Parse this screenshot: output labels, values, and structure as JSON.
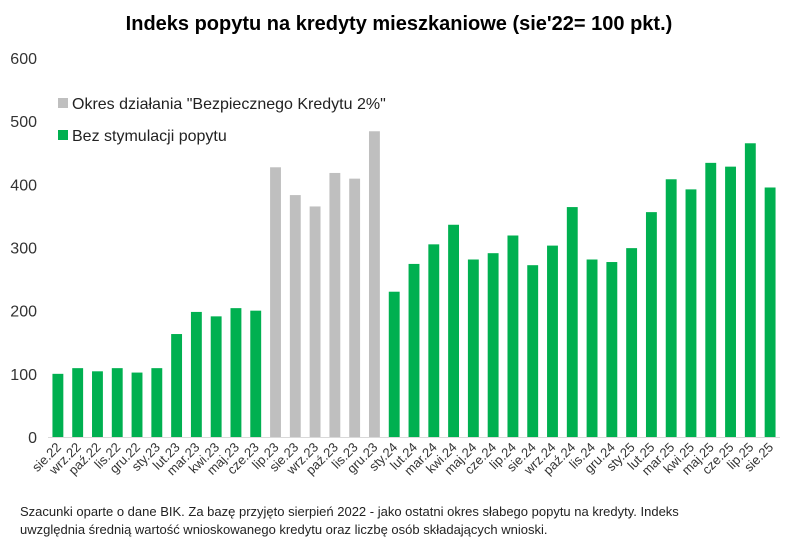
{
  "chart_data": {
    "type": "bar",
    "title": "Indeks popytu na kredyty mieszkaniowe (sie'22= 100 pkt.)",
    "xlabel": "",
    "ylabel": "",
    "ylim": [
      0,
      600
    ],
    "yticks": [
      "0",
      "100",
      "200",
      "300",
      "400",
      "500",
      "600"
    ],
    "grid": false,
    "legend_position": "top-left",
    "categories": [
      "sie.22",
      "wrz.22",
      "paź.22",
      "lis.22",
      "gru.22",
      "sty.23",
      "lut.23",
      "mar.23",
      "kwi.23",
      "maj.23",
      "cze.23",
      "lip.23",
      "sie.23",
      "wrz.23",
      "paź.23",
      "lis.23",
      "gru.23",
      "sty.24",
      "lut.24",
      "mar.24",
      "kwi.24",
      "maj.24",
      "cze.24",
      "lip.24",
      "sie.24",
      "wrz.24",
      "paź.24",
      "lis.24",
      "gru.24",
      "sty.25",
      "lut.25",
      "mar.25",
      "kwi.25",
      "maj.25",
      "cze.25",
      "lip.25",
      "sie.25"
    ],
    "values": [
      100,
      109,
      104,
      109,
      102,
      109,
      163,
      198,
      191,
      204,
      200,
      427,
      383,
      365,
      418,
      409,
      484,
      230,
      274,
      305,
      336,
      281,
      291,
      319,
      272,
      303,
      364,
      281,
      277,
      299,
      356,
      408,
      392,
      434,
      428,
      465,
      395
    ],
    "series_index": [
      1,
      1,
      1,
      1,
      1,
      1,
      1,
      1,
      1,
      1,
      1,
      0,
      0,
      0,
      0,
      0,
      0,
      1,
      1,
      1,
      1,
      1,
      1,
      1,
      1,
      1,
      1,
      1,
      1,
      1,
      1,
      1,
      1,
      1,
      1,
      1,
      1
    ],
    "series": [
      {
        "name": "Okres działania \"Bezpiecznego Kredytu 2%\"",
        "color": "#bfbfbf"
      },
      {
        "name": "Bez stymulacji popytu",
        "color": "#00b050"
      }
    ]
  },
  "footnote": {
    "line1": "Szacunki oparte o dane BIK. Za bazę przyjęto sierpień 2022 - jako ostatni okres słabego popytu na kredyty. Indeks",
    "line2": "uwzględnia średnią wartość wnioskowanego kredytu oraz liczbę osób składających wnioski."
  }
}
